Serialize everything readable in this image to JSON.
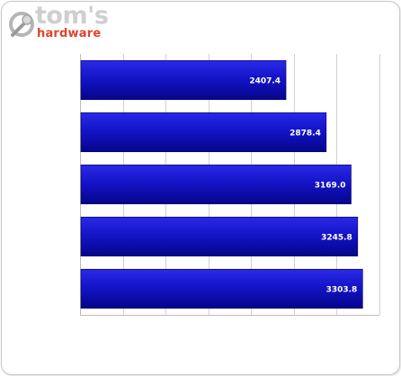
{
  "logo": {
    "top_text": "tom's",
    "bottom_text": "hardware",
    "icon": "wrench-icon",
    "bottom_color": "#e0432b"
  },
  "chart_data": {
    "type": "bar",
    "orientation": "horizontal",
    "categories": [
      "",
      "",
      "",
      "",
      ""
    ],
    "values": [
      2407.4,
      2878.4,
      3169.0,
      3245.8,
      3303.8
    ],
    "value_labels": [
      "2407.4",
      "2878.4",
      "3169.0",
      "3245.8",
      "3303.8"
    ],
    "title": "",
    "xlabel": "",
    "ylabel": "",
    "xlim": [
      0,
      3500
    ],
    "grid": true,
    "legend": "none",
    "bar_color": "#1010c0"
  }
}
